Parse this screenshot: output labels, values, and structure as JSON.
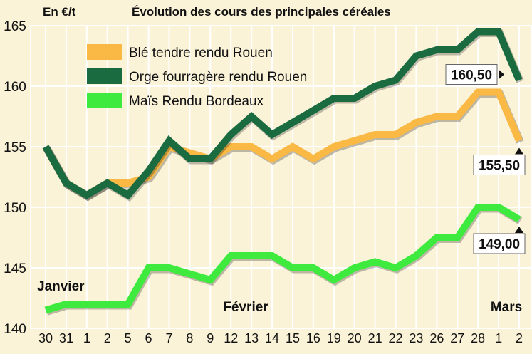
{
  "chart_data": {
    "type": "line",
    "title": "Évolution des cours des principales céréales",
    "ylabel": "En €/t",
    "ylim": [
      140,
      165
    ],
    "yticks": [
      140,
      145,
      150,
      155,
      160,
      165
    ],
    "grid": true,
    "legend_position": "top-left",
    "x": [
      "30",
      "31",
      "1",
      "2",
      "5",
      "6",
      "7",
      "8",
      "9",
      "12",
      "13",
      "14",
      "15",
      "16",
      "19",
      "20",
      "21",
      "22",
      "23",
      "26",
      "27",
      "28",
      "1",
      "2"
    ],
    "months": [
      {
        "label": "Janvier",
        "index": 0
      },
      {
        "label": "Février",
        "index": 10
      },
      {
        "label": "Mars",
        "index": 22
      }
    ],
    "series": [
      {
        "name": "Blé tendre rendu Rouen",
        "color": "#f9b944",
        "values": [
          155,
          152,
          151,
          152,
          152,
          152.5,
          155,
          154.5,
          154,
          155,
          155,
          154,
          155,
          154,
          155,
          155.5,
          156,
          156,
          157,
          157.5,
          157.5,
          159.5,
          159.5,
          155.5
        ],
        "end_label": "155,50",
        "label_side": "below"
      },
      {
        "name": "Orge fourragère rendu Rouen",
        "color": "#1b6b40",
        "values": [
          155,
          152,
          151,
          152,
          151,
          153,
          155.5,
          154,
          154,
          156,
          157.5,
          156,
          157,
          158,
          159,
          159,
          160,
          160.5,
          162.5,
          163,
          163,
          164.5,
          164.5,
          160.5
        ],
        "end_label": "160,50",
        "label_side": "left"
      },
      {
        "name": "Maïs Rendu Bordeaux",
        "color": "#3fea3f",
        "values": [
          141.5,
          142,
          142,
          142,
          142,
          145,
          145,
          144.5,
          144,
          146,
          146,
          146,
          145,
          145,
          144,
          145,
          145.5,
          145,
          146,
          147.5,
          147.5,
          150,
          150,
          149
        ],
        "end_label": "149,00",
        "label_side": "below"
      }
    ]
  }
}
